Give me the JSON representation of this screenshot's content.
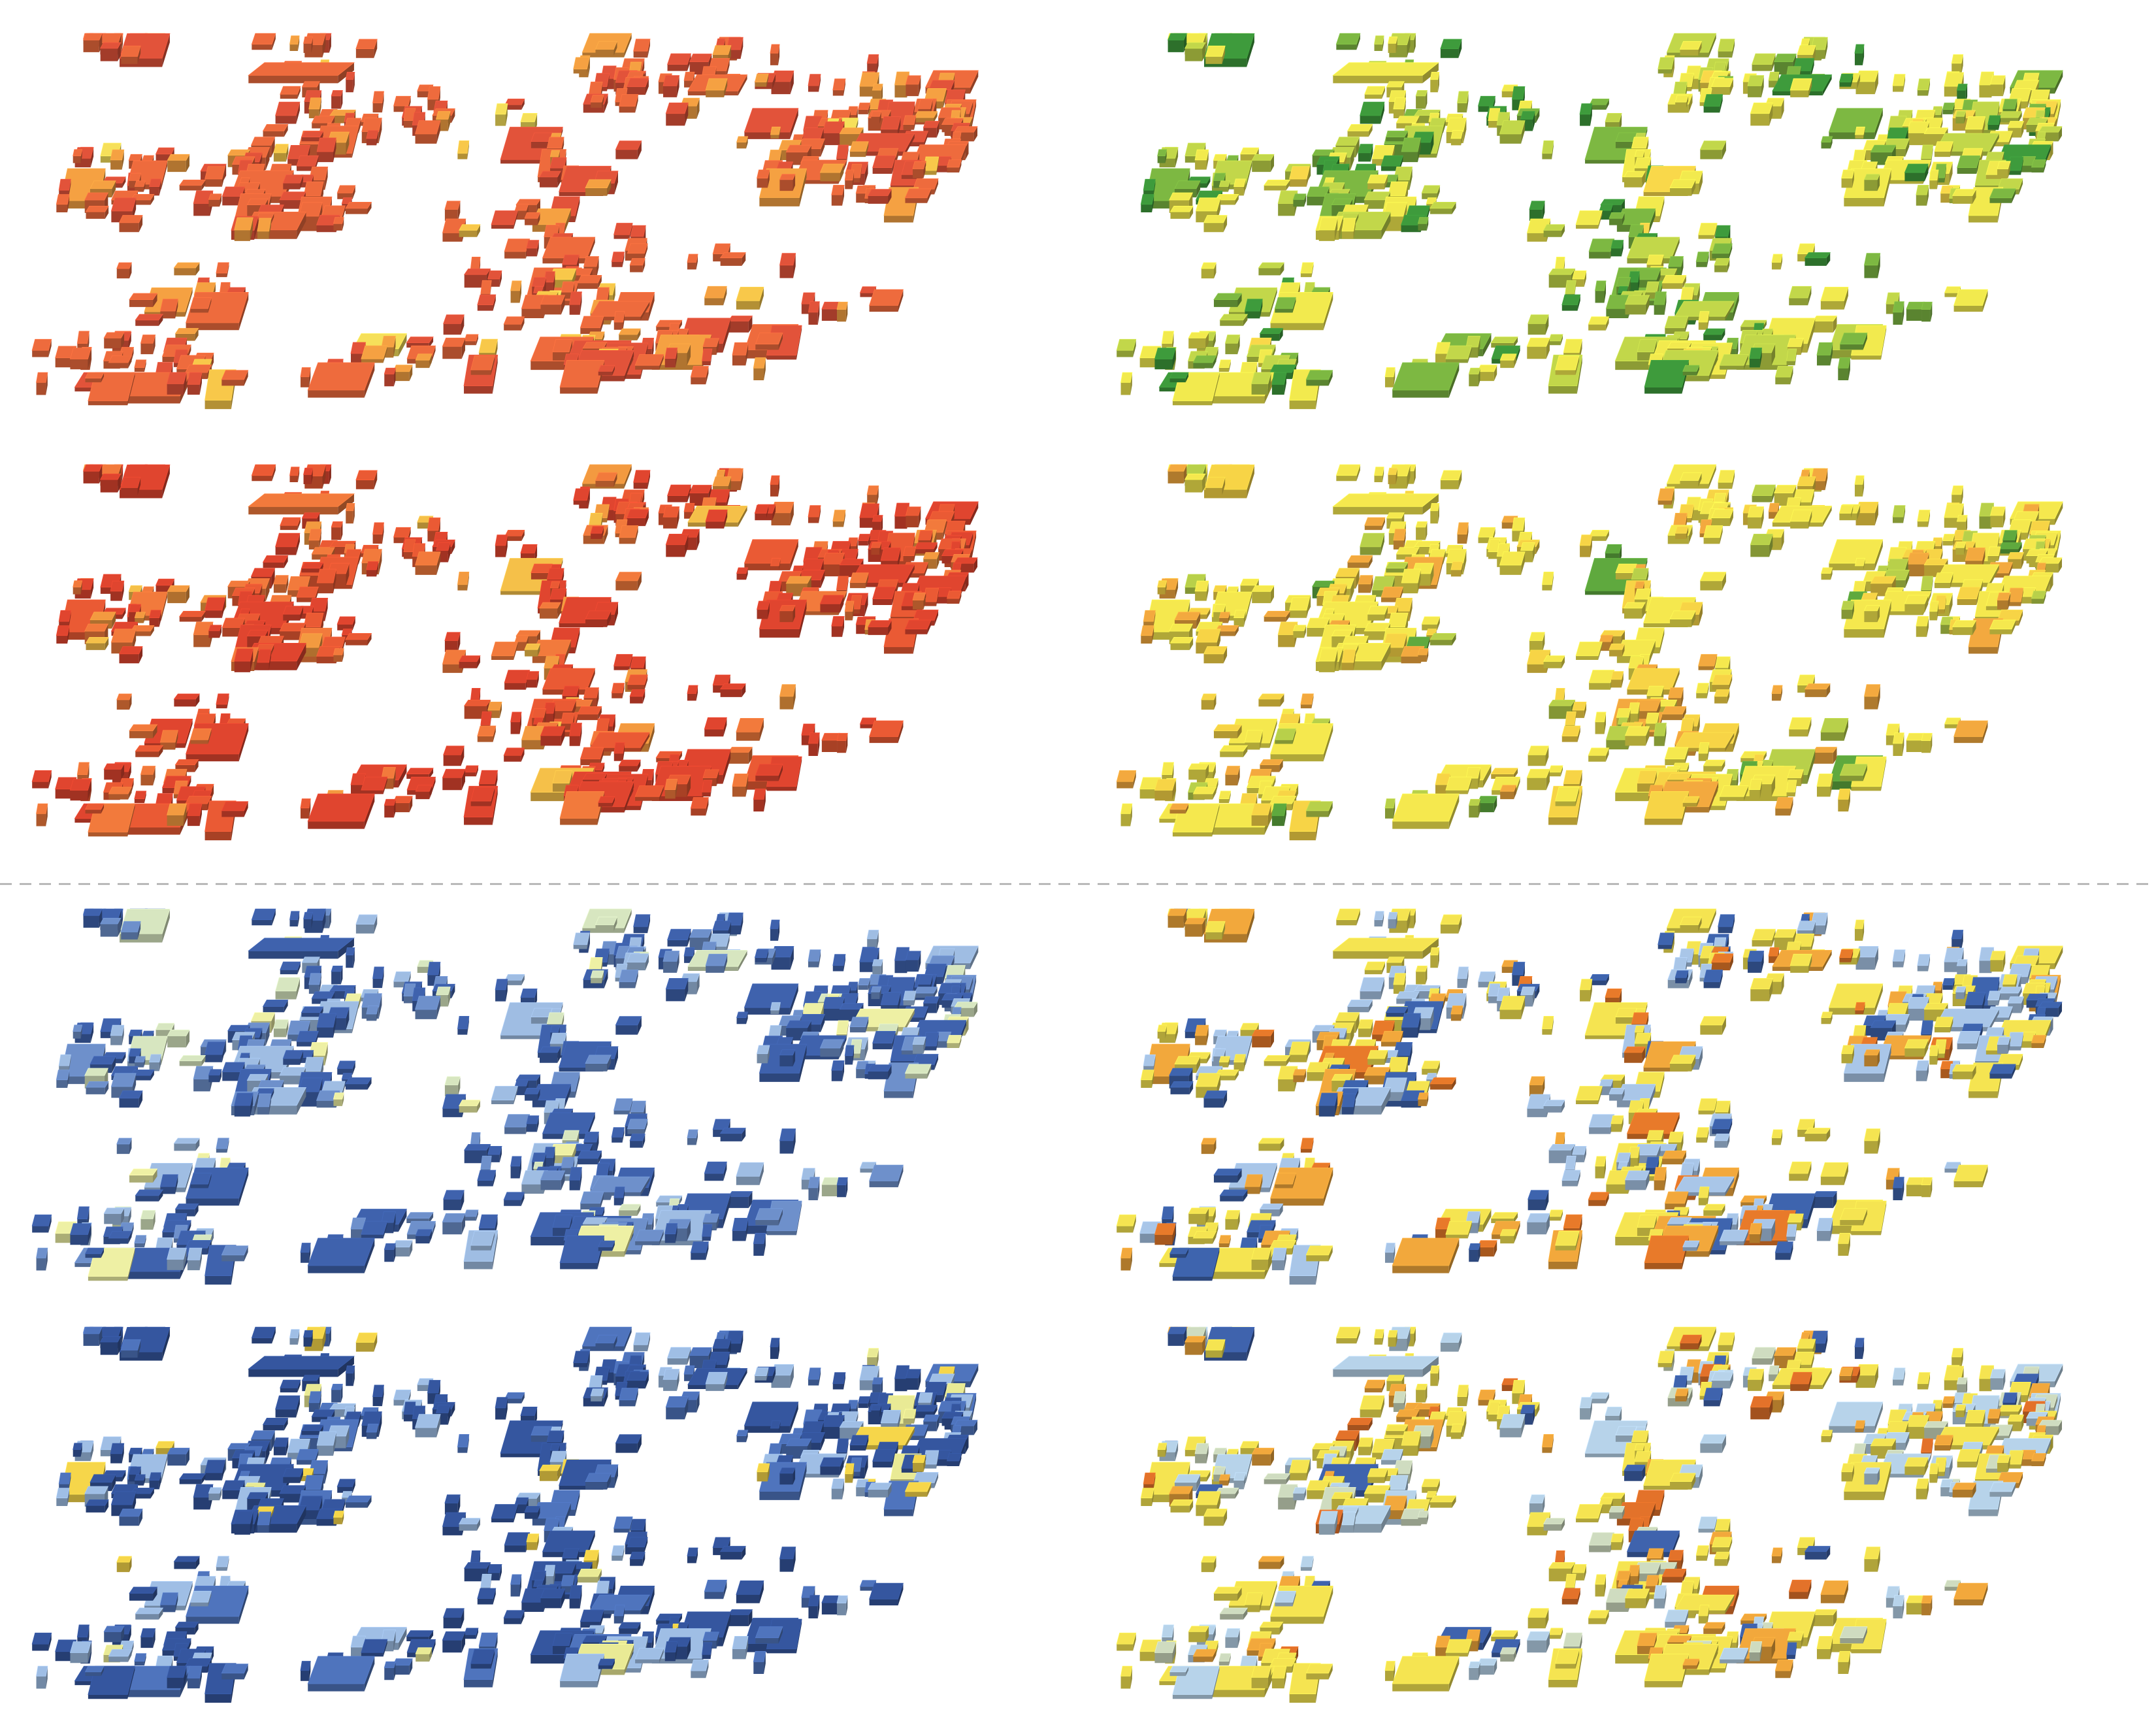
{
  "figure": {
    "panels": [
      {
        "id": "top-left-upper",
        "row": 0,
        "col": 0,
        "palette": [
          "#e2533a",
          "#ee6b3d",
          "#f5a142",
          "#f8c84a",
          "#f6e05a"
        ],
        "weights": [
          0.28,
          0.52,
          0.14,
          0.04,
          0.02
        ]
      },
      {
        "id": "top-right-upper",
        "row": 0,
        "col": 1,
        "palette": [
          "#3e9b3c",
          "#7db842",
          "#c2d74a",
          "#f2ea4e",
          "#f9d84a"
        ],
        "weights": [
          0.12,
          0.18,
          0.3,
          0.38,
          0.02
        ]
      },
      {
        "id": "top-left-lower",
        "row": 1,
        "col": 0,
        "palette": [
          "#e0452f",
          "#ea5a34",
          "#f27a3c",
          "#f39a40",
          "#f5c049"
        ],
        "weights": [
          0.48,
          0.3,
          0.14,
          0.06,
          0.02
        ]
      },
      {
        "id": "top-right-lower",
        "row": 1,
        "col": 1,
        "palette": [
          "#f5e84e",
          "#f7d446",
          "#f3a93f",
          "#b8d04a",
          "#5fa93e"
        ],
        "weights": [
          0.5,
          0.25,
          0.13,
          0.09,
          0.03
        ]
      },
      {
        "id": "bottom-left-upper",
        "row": 2,
        "col": 0,
        "palette": [
          "#3f62ad",
          "#6e90cb",
          "#9fbde3",
          "#d7e6c0",
          "#eef0a4"
        ],
        "weights": [
          0.5,
          0.22,
          0.18,
          0.06,
          0.04
        ]
      },
      {
        "id": "bottom-right-upper",
        "row": 2,
        "col": 1,
        "palette": [
          "#f5e451",
          "#f2a83c",
          "#e87a2a",
          "#a9c6e8",
          "#3e64ae"
        ],
        "weights": [
          0.42,
          0.14,
          0.06,
          0.24,
          0.14
        ]
      },
      {
        "id": "bottom-left-lower",
        "row": 3,
        "col": 0,
        "palette": [
          "#35569f",
          "#4f74bd",
          "#9fbee5",
          "#e9ea95",
          "#f6d64a"
        ],
        "weights": [
          0.52,
          0.24,
          0.17,
          0.04,
          0.03
        ]
      },
      {
        "id": "bottom-right-lower",
        "row": 3,
        "col": 1,
        "palette": [
          "#f5e451",
          "#f2a83c",
          "#e3722a",
          "#b7d3ea",
          "#cfdcc0",
          "#3f63ad"
        ],
        "weights": [
          0.4,
          0.18,
          0.08,
          0.18,
          0.1,
          0.06
        ]
      }
    ],
    "divider": {
      "style": "dashed",
      "color": "#aaaaaa"
    }
  }
}
